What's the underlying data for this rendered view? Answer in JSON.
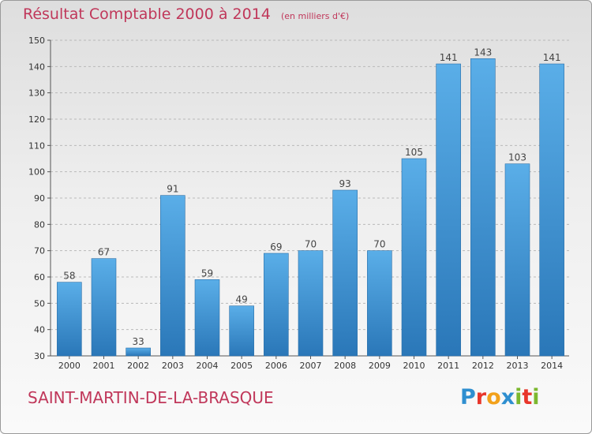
{
  "header": {
    "title": "Résultat Comptable 2000 à 2014",
    "unit": "(en milliers d'€)"
  },
  "footer": {
    "commune": "SAINT-MARTIN-DE-LA-BRASQUE",
    "logo_letters": [
      "P",
      "r",
      "o",
      "x",
      "i",
      "t",
      "i"
    ],
    "logo_colors": [
      "#2f8fd0",
      "#e8362b",
      "#f2a11b",
      "#2f8fd0",
      "#7cb82f",
      "#e8362b",
      "#7cb82f"
    ]
  },
  "colors": {
    "bar_light": "#5aaee8",
    "bar_dark": "#2a77b8",
    "accent": "#c0375a"
  },
  "chart_data": {
    "type": "bar",
    "categories": [
      "2000",
      "2001",
      "2002",
      "2003",
      "2004",
      "2005",
      "2006",
      "2007",
      "2008",
      "2009",
      "2010",
      "2011",
      "2012",
      "2013",
      "2014"
    ],
    "values": [
      58,
      67,
      33,
      91,
      59,
      49,
      69,
      70,
      93,
      70,
      105,
      141,
      143,
      103,
      141
    ],
    "ylim": [
      30,
      150
    ],
    "yticks": [
      30,
      40,
      50,
      60,
      70,
      80,
      90,
      100,
      110,
      120,
      130,
      140,
      150
    ],
    "grid": true
  }
}
